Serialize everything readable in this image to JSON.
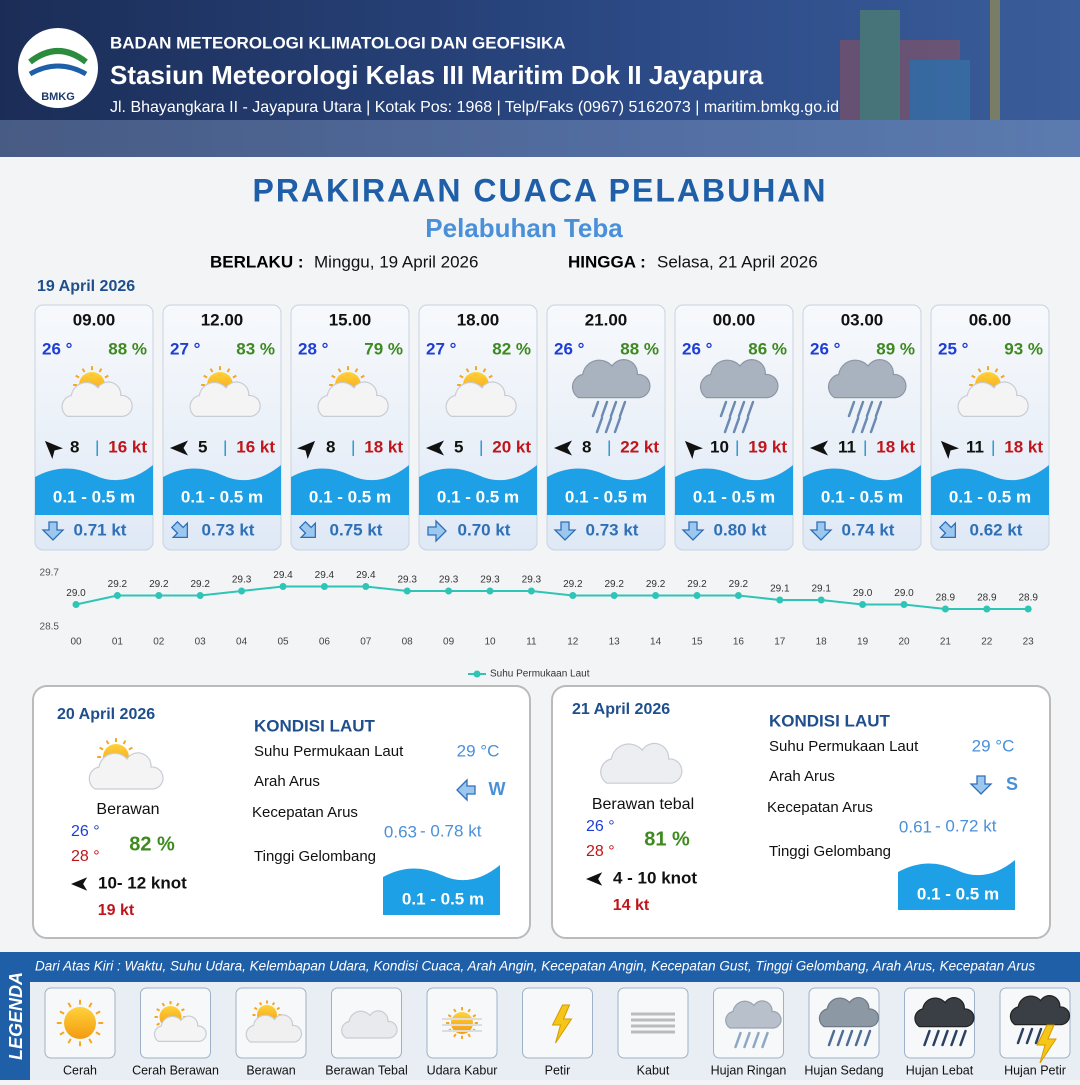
{
  "header": {
    "agency": "BADAN METEOROLOGI KLIMATOLOGI DAN GEOFISIKA",
    "station": "Stasiun Meteorologi Kelas III Maritim Dok II Jayapura",
    "address": "Jl. Bhayangkara II - Jayapura Utara | Kotak Pos: 1968 | Telp/Faks (0967) 5162073 | maritim.bmkg.go.id",
    "logo": "BMKG"
  },
  "title": "PRAKIRAAN CUACA PELABUHAN",
  "subtitle": "Pelabuhan Teba",
  "validity": {
    "from_label": "BERLAKU :",
    "from": "Minggu, 19 April 2026",
    "to_label": "HINGGA :",
    "to": "Selasa, 21 April 2026"
  },
  "day1": {
    "date": "19 April 2026",
    "cards": [
      {
        "time": "09.00",
        "temp": "26 °",
        "humidity": "88 %",
        "wind": "8",
        "gust": "16 kt",
        "wave": "0.1 - 0.5 m",
        "current": "0.71 kt"
      },
      {
        "time": "12.00",
        "temp": "27 °",
        "humidity": "83 %",
        "wind": "5",
        "gust": "16 kt",
        "wave": "0.1 - 0.5 m",
        "current": "0.73 kt"
      },
      {
        "time": "15.00",
        "temp": "28 °",
        "humidity": "79 %",
        "wind": "8",
        "gust": "18 kt",
        "wave": "0.1 - 0.5 m",
        "current": "0.75 kt"
      },
      {
        "time": "18.00",
        "temp": "27 °",
        "humidity": "82 %",
        "wind": "5",
        "gust": "20 kt",
        "wave": "0.1 - 0.5 m",
        "current": "0.70 kt"
      },
      {
        "time": "21.00",
        "temp": "26 °",
        "humidity": "88 %",
        "wind": "8",
        "gust": "22 kt",
        "wave": "0.1 - 0.5 m",
        "current": "0.73 kt"
      },
      {
        "time": "00.00",
        "temp": "26 °",
        "humidity": "86 %",
        "wind": "10",
        "gust": "19 kt",
        "wave": "0.1 - 0.5 m",
        "current": "0.80 kt"
      },
      {
        "time": "03.00",
        "temp": "26 °",
        "humidity": "89 %",
        "wind": "11",
        "gust": "18 kt",
        "wave": "0.1 - 0.5 m",
        "current": "0.74 kt"
      },
      {
        "time": "06.00",
        "temp": "25 °",
        "humidity": "93 %",
        "wind": "11",
        "gust": "18 kt",
        "wave": "0.1 - 0.5 m",
        "current": "0.62 kt"
      }
    ]
  },
  "chart_data": {
    "type": "line",
    "categories": [
      "00",
      "01",
      "02",
      "03",
      "04",
      "05",
      "06",
      "07",
      "08",
      "09",
      "10",
      "11",
      "12",
      "13",
      "14",
      "15",
      "16",
      "17",
      "18",
      "19",
      "20",
      "21",
      "22",
      "23"
    ],
    "series": [
      {
        "name": "Suhu Permukaan Laut",
        "color": "#2ec4b6",
        "values": [
          29.0,
          29.2,
          29.2,
          29.2,
          29.3,
          29.4,
          29.4,
          29.4,
          29.3,
          29.3,
          29.3,
          29.3,
          29.2,
          29.2,
          29.2,
          29.2,
          29.2,
          29.1,
          29.1,
          29.0,
          29.0,
          28.9,
          28.9,
          28.9
        ],
        "value_labels": [
          "29.0",
          "29.2",
          "29.2",
          "29.2",
          "29.3",
          "29.4",
          "29.4",
          "29.4",
          "29.3",
          "29.3",
          "29.3",
          "29.3",
          "29.2",
          "29.2",
          "29.2",
          "29.2",
          "29.2",
          "29.1",
          "29.1",
          "29.0",
          "29.0",
          "28.9",
          "28.9",
          "28.9"
        ]
      }
    ],
    "ylim": [
      28.5,
      29.7
    ],
    "yticks": [
      28.5,
      29.7
    ]
  },
  "days": [
    {
      "date": "20 April 2026",
      "condition": "Berawan",
      "temp_min": "26 °",
      "temp_max": "28 °",
      "humidity": "82 %",
      "wind": "10- 12 knot",
      "gust": "19 kt",
      "sea_title": "KONDISI LAUT",
      "sst_label": "Suhu Permukaan Laut",
      "sst": "29 °C",
      "dir_label": "Arah Arus",
      "dir": "W",
      "speed_label": "Kecepatan Arus",
      "speed_min": "0.63",
      "speed_max": "- 0.78 kt",
      "wave_label": "Tinggi Gelombang",
      "wave": "0.1 - 0.5 m"
    },
    {
      "date": "21 April 2026",
      "condition": "Berawan tebal",
      "temp_min": "26 °",
      "temp_max": "28 °",
      "humidity": "81 %",
      "wind": "4 - 10 knot",
      "gust": "14 kt",
      "sea_title": "KONDISI LAUT",
      "sst_label": "Suhu Permukaan Laut",
      "sst": "29 °C",
      "dir_label": "Arah Arus",
      "dir": "S",
      "speed_label": "Kecepatan Arus",
      "speed_min": "0.61",
      "speed_max": "- 0.72 kt",
      "wave_label": "Tinggi Gelombang",
      "wave": "0.1 - 0.5 m"
    }
  ],
  "legend": {
    "title": "LEGENDA",
    "description": "Dari Atas Kiri : Waktu, Suhu Udara, Kelembapan Udara, Kondisi Cuaca, Arah Angin, Kecepatan Angin, Kecepatan Gust, Tinggi Gelombang, Arah Arus, Kecepatan Arus",
    "items": [
      "Cerah",
      "Cerah Berawan",
      "Berawan",
      "Berawan Tebal",
      "Udara Kabur",
      "Petir",
      "Kabut",
      "Hujan Ringan",
      "Hujan Sedang",
      "Hujan Lebat",
      "Hujan Petir"
    ]
  }
}
